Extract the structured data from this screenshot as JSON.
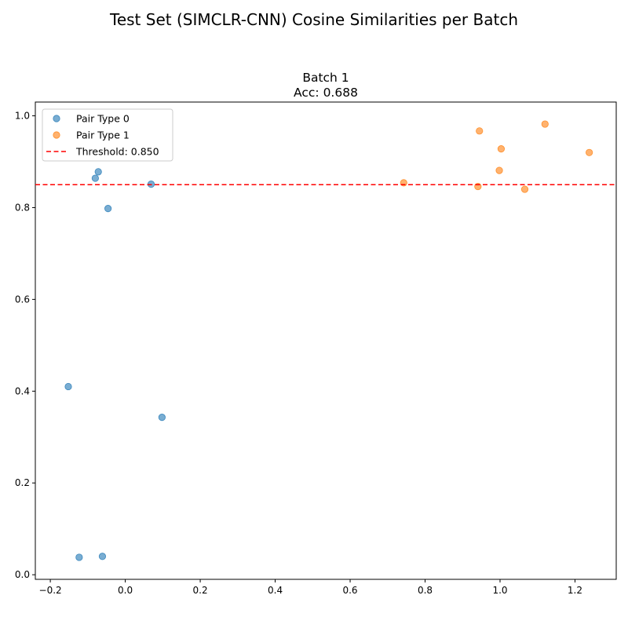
{
  "figure": {
    "suptitle": "Test Set (SIMCLR-CNN) Cosine Similarities per Batch"
  },
  "chart_data": {
    "type": "scatter",
    "title": "Batch 1",
    "subtitle": "Acc: 0.688",
    "xlabel": "",
    "ylabel": "",
    "xlim": [
      -0.24,
      1.31
    ],
    "ylim": [
      -0.01,
      1.03
    ],
    "xticks": [
      -0.2,
      0.0,
      0.2,
      0.4,
      0.6,
      0.8,
      1.0,
      1.2
    ],
    "xtick_labels": [
      "−0.2",
      "0.0",
      "0.2",
      "0.4",
      "0.6",
      "0.8",
      "1.0",
      "1.2"
    ],
    "yticks": [
      0.0,
      0.2,
      0.4,
      0.6,
      0.8,
      1.0
    ],
    "ytick_labels": [
      "0.0",
      "0.2",
      "0.4",
      "0.6",
      "0.8",
      "1.0"
    ],
    "grid": false,
    "legend_position": "upper left",
    "series": [
      {
        "name": "Pair Type 0",
        "color": "#1f77b4",
        "points": [
          {
            "x": -0.08,
            "y": 0.864
          },
          {
            "x": -0.072,
            "y": 0.878
          },
          {
            "x": 0.069,
            "y": 0.851
          },
          {
            "x": -0.046,
            "y": 0.798
          },
          {
            "x": -0.152,
            "y": 0.41
          },
          {
            "x": 0.098,
            "y": 0.343
          },
          {
            "x": -0.123,
            "y": 0.038
          },
          {
            "x": -0.061,
            "y": 0.04
          }
        ]
      },
      {
        "name": "Pair Type 1",
        "color": "#ff7f0e",
        "points": [
          {
            "x": 0.945,
            "y": 0.967
          },
          {
            "x": 1.12,
            "y": 0.982
          },
          {
            "x": 1.003,
            "y": 0.928
          },
          {
            "x": 1.238,
            "y": 0.92
          },
          {
            "x": 0.998,
            "y": 0.881
          },
          {
            "x": 0.743,
            "y": 0.854
          },
          {
            "x": 0.941,
            "y": 0.846
          },
          {
            "x": 1.066,
            "y": 0.84
          }
        ]
      }
    ],
    "threshold": {
      "value": 0.85,
      "label": "Threshold: 0.850",
      "color": "#ff0000",
      "style": "dashed"
    }
  }
}
